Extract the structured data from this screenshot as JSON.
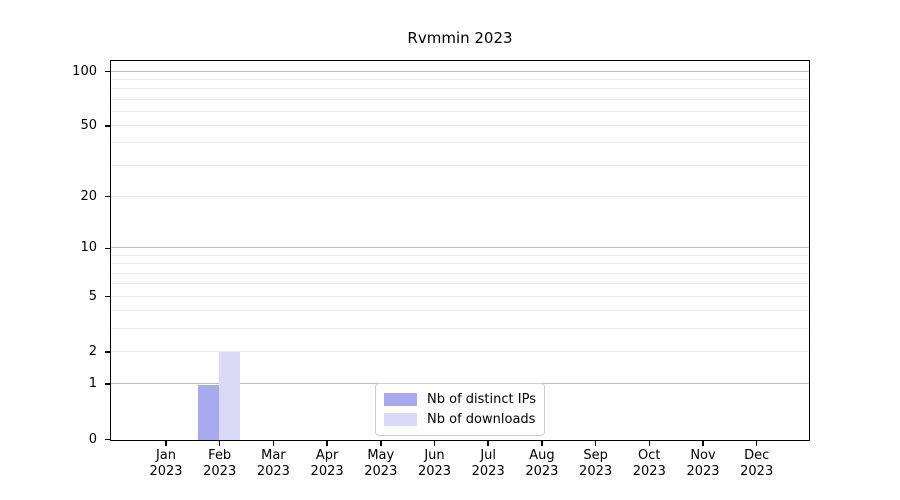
{
  "chart_data": {
    "type": "bar",
    "title": "Rvmmin 2023",
    "categories": [
      "Jan 2023",
      "Feb 2023",
      "Mar 2023",
      "Apr 2023",
      "May 2023",
      "Jun 2023",
      "Jul 2023",
      "Aug 2023",
      "Sep 2023",
      "Oct 2023",
      "Nov 2023",
      "Dec 2023"
    ],
    "x_tick_line1": [
      "Jan",
      "Feb",
      "Mar",
      "Apr",
      "May",
      "Jun",
      "Jul",
      "Aug",
      "Sep",
      "Oct",
      "Nov",
      "Dec"
    ],
    "x_tick_line2": "2023",
    "series": [
      {
        "name": "Nb of distinct IPs",
        "color": "#a9a9f0",
        "values": [
          0,
          1,
          0,
          0,
          0,
          0,
          0,
          0,
          0,
          0,
          0,
          0
        ]
      },
      {
        "name": "Nb of downloads",
        "color": "#dadaf8",
        "values": [
          0,
          2,
          0,
          0,
          0,
          0,
          0,
          0,
          0,
          0,
          0,
          0
        ]
      }
    ],
    "yscale": "log1p",
    "ylim": [
      0,
      113
    ],
    "yticks_labeled": [
      0,
      1,
      2,
      5,
      10,
      20,
      50,
      100
    ],
    "yticks_major_grid": [
      1,
      10,
      100
    ],
    "yticks_minor_grid": [
      2,
      3,
      4,
      5,
      6,
      7,
      8,
      9,
      20,
      30,
      40,
      50,
      60,
      70,
      80,
      90
    ],
    "grid": "horizontal",
    "legend_position": "lower center",
    "xlabel": "",
    "ylabel": ""
  },
  "colors": {
    "background": "#ffffff",
    "axis": "#000000",
    "grid_major": "#bdbdbd",
    "grid_minor": "#ebebeb",
    "legend_border": "#cccccc",
    "bar_distinct_ips": "#a9a9f0",
    "bar_downloads": "#dadaf8"
  }
}
